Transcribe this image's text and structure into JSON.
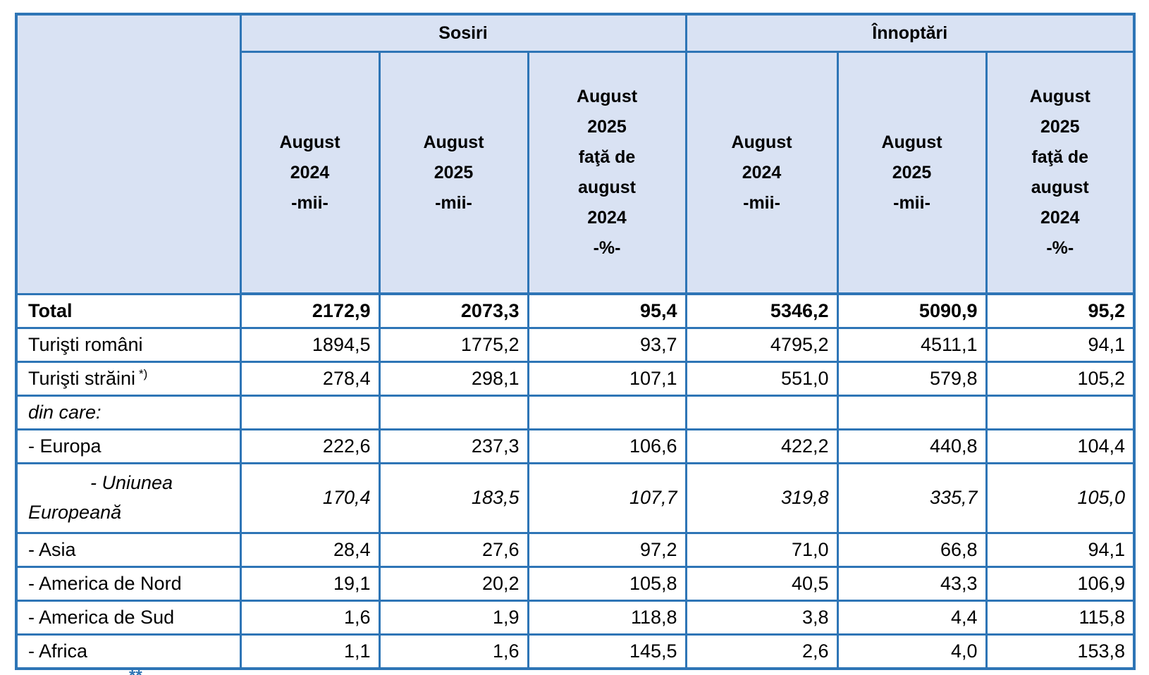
{
  "table": {
    "groups": [
      {
        "label": "Sosiri"
      },
      {
        "label": "Înnoptări"
      }
    ],
    "col_headers": [
      "August\n2024\n-mii-",
      "August\n2025\n-mii-",
      "August\n2025\nfaţă de\naugust\n2024\n-%-",
      "August\n2024\n-mii-",
      "August\n2025\n-mii-",
      "August\n2025\nfaţă de\naugust\n2024\n-%-"
    ],
    "rows": [
      {
        "label": "Total",
        "style": "bold",
        "values": [
          "2172,9",
          "2073,3",
          "95,4",
          "5346,2",
          "5090,9",
          "95,2"
        ]
      },
      {
        "label": "Turişti români",
        "style": "normal",
        "values": [
          "1894,5",
          "1775,2",
          "93,7",
          "4795,2",
          "4511,1",
          "94,1"
        ]
      },
      {
        "label": "Turişti străini",
        "label_sup": "*)",
        "style": "normal",
        "values": [
          "278,4",
          "298,1",
          "107,1",
          "551,0",
          "579,8",
          "105,2"
        ]
      },
      {
        "label": "din care:",
        "style": "italic",
        "values": [
          "",
          "",
          "",
          "",
          "",
          ""
        ]
      },
      {
        "label": "- Europa",
        "style": "normal",
        "values": [
          "222,6",
          "237,3",
          "106,6",
          "422,2",
          "440,8",
          "104,4"
        ]
      },
      {
        "label": "- Uniunea Europeană",
        "style": "italic",
        "indent": true,
        "values": [
          "170,4",
          "183,5",
          "107,7",
          "319,8",
          "335,7",
          "105,0"
        ]
      },
      {
        "label": "- Asia",
        "style": "normal",
        "values": [
          "28,4",
          "27,6",
          "97,2",
          "71,0",
          "66,8",
          "94,1"
        ]
      },
      {
        "label": "- America de Nord",
        "style": "normal",
        "values": [
          "19,1",
          "20,2",
          "105,8",
          "40,5",
          "43,3",
          "106,9"
        ]
      },
      {
        "label": "- America de Sud",
        "style": "normal",
        "values": [
          "1,6",
          "1,9",
          "118,8",
          "3,8",
          "4,4",
          "115,8"
        ]
      },
      {
        "label": "- Africa",
        "style": "normal",
        "values": [
          "1,1",
          "1,6",
          "145,5",
          "2,6",
          "4,0",
          "153,8"
        ]
      }
    ],
    "footnote_fragment": "**",
    "colors": {
      "header_bg": "#d9e2f3",
      "border": "#2e75b6",
      "footnote": "#2e74b5"
    }
  }
}
